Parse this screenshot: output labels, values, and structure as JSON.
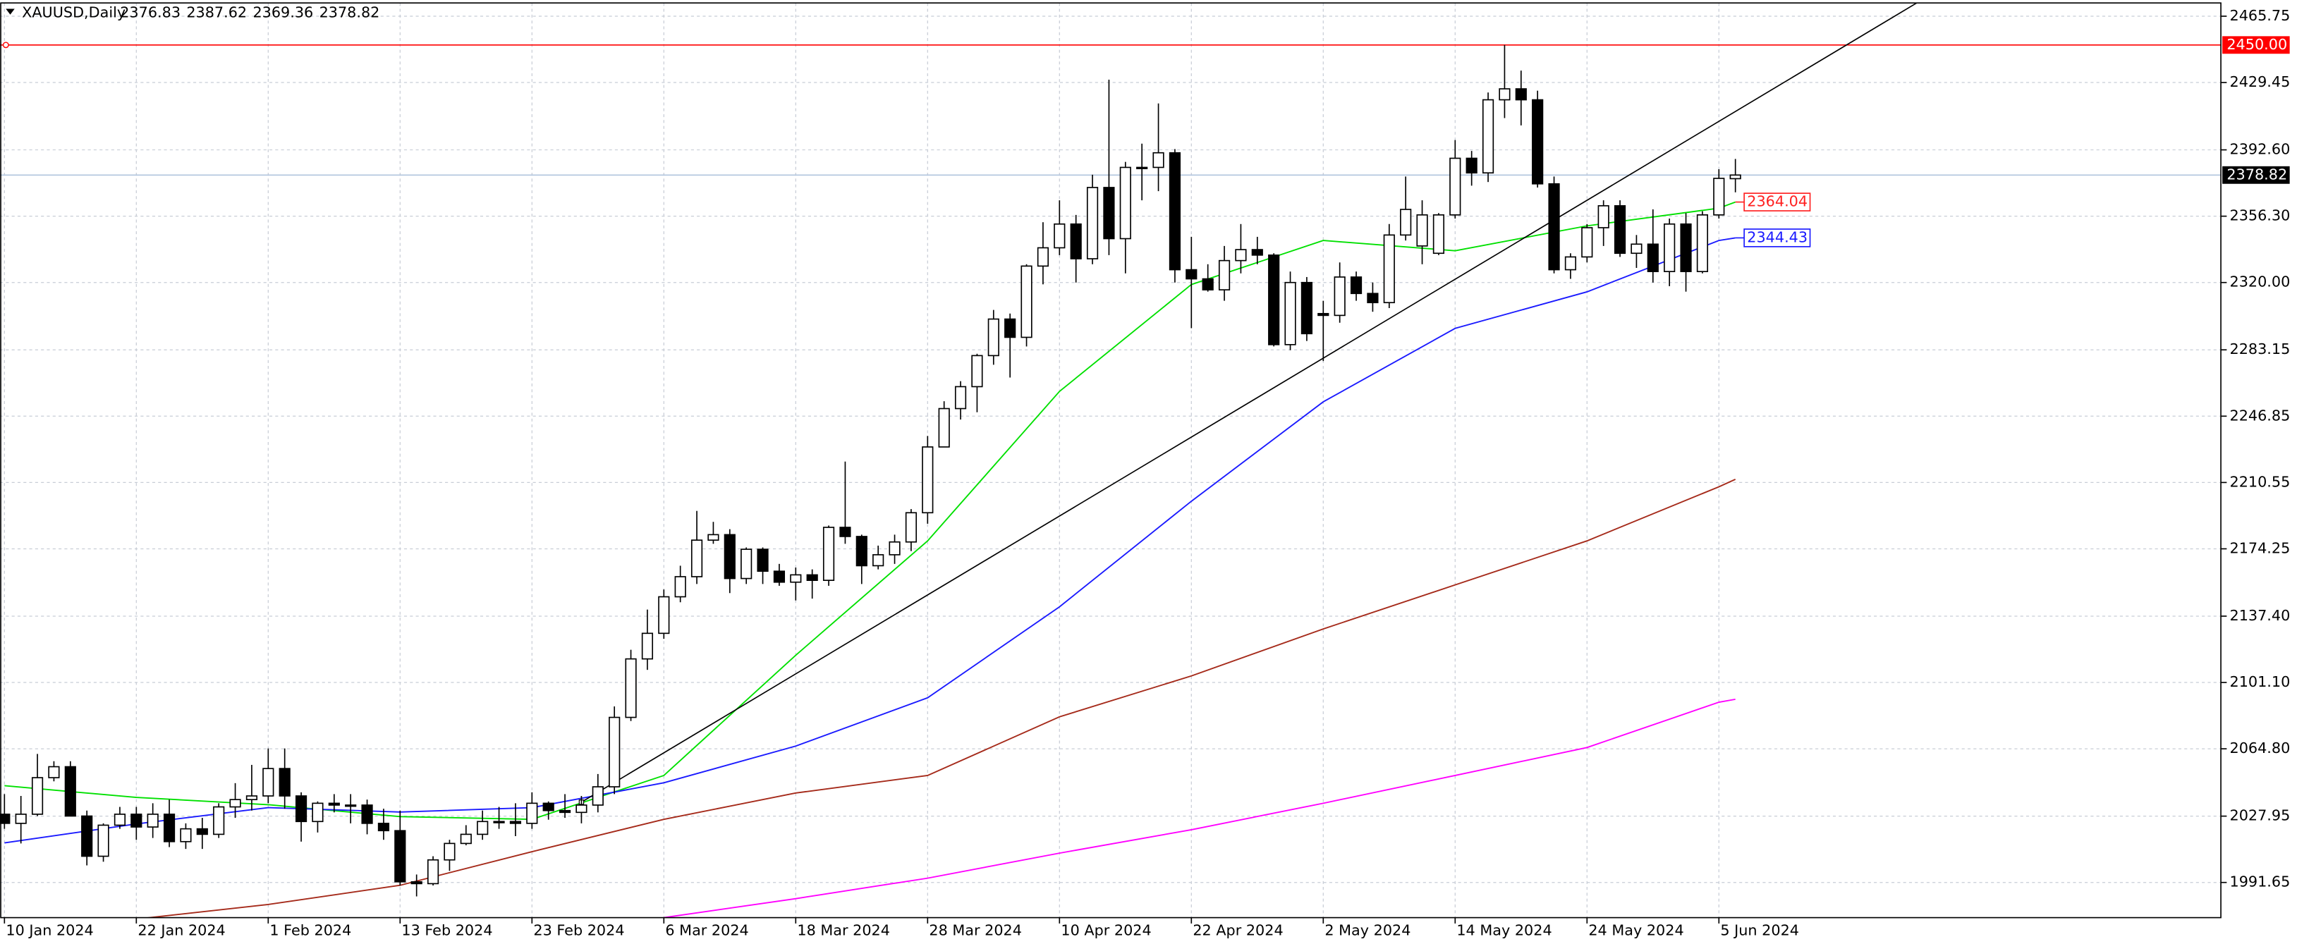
{
  "chart_data": {
    "type": "candlestick",
    "title": "XAUUSD,Daily",
    "categories": [
      "10 Jan 2024",
      null,
      null,
      null,
      null,
      null,
      null,
      null,
      "22 Jan 2024",
      null,
      null,
      null,
      null,
      null,
      null,
      null,
      "1 Feb 2024",
      null,
      null,
      null,
      null,
      null,
      null,
      null,
      "13 Feb 2024",
      null,
      null,
      null,
      null,
      null,
      null,
      null,
      "23 Feb 2024",
      null,
      null,
      null,
      null,
      null,
      null,
      null,
      "6 Mar 2024",
      null,
      null,
      null,
      null,
      null,
      null,
      null,
      "18 Mar 2024",
      null,
      null,
      null,
      null,
      null,
      null,
      null,
      "28 Mar 2024",
      null,
      null,
      null,
      null,
      null,
      null,
      null,
      "10 Apr 2024",
      null,
      null,
      null,
      null,
      null,
      null,
      null,
      "22 Apr 2024",
      null,
      null,
      null,
      null,
      null,
      null,
      null,
      "2 May 2024",
      null,
      null,
      null,
      null,
      null,
      null,
      null,
      "14 May 2024",
      null,
      null,
      null,
      null,
      null,
      null,
      null,
      "24 May 2024",
      null,
      null,
      null,
      null,
      null,
      null,
      null,
      "5 Jun 2024",
      null
    ],
    "open": [
      2029,
      2024,
      2029,
      2049,
      2055,
      2028,
      2006,
      2023,
      2029,
      2022,
      2029,
      2014,
      2021,
      2018,
      2033,
      2037,
      2039,
      2054,
      2039,
      2025,
      2035,
      2034,
      2034,
      2024,
      2020,
      1992,
      1991,
      2004,
      2013,
      2018,
      2025,
      2025,
      2024,
      2035,
      2031,
      2030,
      2034,
      2044,
      2082,
      2114,
      2128,
      2148,
      2159,
      2179,
      2182,
      2158,
      2174,
      2162,
      2156,
      2160,
      2157,
      2186,
      2181,
      2165,
      2171,
      2178,
      2194,
      2230,
      2251,
      2263,
      2280,
      2300,
      2290,
      2329,
      2339,
      2352,
      2333,
      2372,
      2344,
      2383,
      2383,
      2391,
      2327,
      2322,
      2316,
      2332,
      2338,
      2335,
      2286,
      2320,
      2303,
      2302,
      2323,
      2314,
      2309,
      2346,
      2340,
      2336,
      2357,
      2388,
      2380,
      2420,
      2426,
      2420,
      2374,
      2327,
      2334,
      2350,
      2362,
      2336,
      2341,
      2326,
      2352,
      2326,
      2357,
      2376.83
    ],
    "high": [
      2040,
      2039,
      2062,
      2058,
      2058,
      2031,
      2024,
      2033,
      2033,
      2035,
      2037,
      2024,
      2027,
      2035,
      2046,
      2056,
      2065,
      2065,
      2041,
      2036,
      2040,
      2040,
      2037,
      2032,
      2031,
      1996,
      2006,
      2015,
      2023,
      2031,
      2033,
      2035,
      2041,
      2036,
      2040,
      2039,
      2051,
      2088,
      2119,
      2141,
      2152,
      2165,
      2195,
      2189,
      2185,
      2175,
      2175,
      2166,
      2164,
      2163,
      2187,
      2222,
      2182,
      2176,
      2182,
      2196,
      2236,
      2255,
      2266,
      2281,
      2305,
      2303,
      2330,
      2353,
      2365,
      2357,
      2379,
      2431,
      2386,
      2396,
      2418,
      2393,
      2345,
      2330,
      2340,
      2352,
      2345,
      2336,
      2326,
      2323,
      2310,
      2331,
      2326,
      2320,
      2352,
      2378,
      2365,
      2358,
      2398,
      2392,
      2424,
      2450,
      2436,
      2425,
      2378,
      2336,
      2352,
      2365,
      2365,
      2346,
      2360,
      2355,
      2358,
      2359,
      2382,
      2387.62
    ],
    "low": [
      2021,
      2013,
      2028,
      2047,
      2029,
      2001,
      2003,
      2021,
      2015,
      2016,
      2011,
      2010,
      2010,
      2016,
      2027,
      2031,
      2035,
      2032,
      2014,
      2019,
      2030,
      2024,
      2018,
      2015,
      1990,
      1984,
      1990,
      1998,
      2012,
      2015,
      2021,
      2017,
      2021,
      2026,
      2027,
      2024,
      2030,
      2040,
      2080,
      2108,
      2125,
      2145,
      2155,
      2177,
      2150,
      2155,
      2155,
      2154,
      2146,
      2147,
      2154,
      2177,
      2155,
      2163,
      2166,
      2173,
      2188,
      2230,
      2245,
      2249,
      2275,
      2268,
      2285,
      2319,
      2335,
      2320,
      2330,
      2335,
      2325,
      2365,
      2370,
      2320,
      2295,
      2315,
      2310,
      2325,
      2330,
      2285,
      2283,
      2288,
      2277,
      2298,
      2310,
      2304,
      2306,
      2343,
      2330,
      2335,
      2355,
      2373,
      2375,
      2410,
      2406,
      2372,
      2325,
      2322,
      2331,
      2340,
      2334,
      2328,
      2320,
      2318,
      2315,
      2325,
      2355,
      2369.36
    ],
    "close": [
      2024,
      2029,
      2049,
      2055,
      2028,
      2006,
      2023,
      2029,
      2022,
      2029,
      2014,
      2021,
      2018,
      2033,
      2037,
      2039,
      2054,
      2039,
      2025,
      2035,
      2034,
      2034,
      2024,
      2020,
      1992,
      1991,
      2004,
      2013,
      2018,
      2025,
      2025,
      2024,
      2035,
      2031,
      2030,
      2034,
      2044,
      2082,
      2114,
      2128,
      2148,
      2159,
      2179,
      2182,
      2158,
      2174,
      2162,
      2156,
      2160,
      2157,
      2186,
      2181,
      2165,
      2171,
      2178,
      2194,
      2230,
      2251,
      2263,
      2280,
      2300,
      2290,
      2329,
      2339,
      2352,
      2333,
      2372,
      2344,
      2383,
      2383,
      2391,
      2327,
      2322,
      2316,
      2332,
      2338,
      2335,
      2286,
      2320,
      2292,
      2302,
      2323,
      2314,
      2309,
      2346,
      2360,
      2357,
      2357,
      2388,
      2380,
      2420,
      2426,
      2420,
      2374,
      2327,
      2334,
      2350,
      2362,
      2336,
      2341,
      2326,
      2352,
      2326,
      2357,
      2377,
      2378.82
    ],
    "lines": [
      {
        "color": "#00e000",
        "label_color": "#ff2020",
        "x": [
          0,
          8,
          16,
          24,
          32,
          40,
          48,
          56,
          64,
          72,
          80,
          88,
          96,
          104,
          105
        ],
        "values": [
          2044.6,
          2038.2,
          2034.2,
          2027.7,
          2026.2,
          2050.2,
          2116.0,
          2178.6,
          2260.4,
          2318.9,
          2343.0,
          2337.4,
          2351.0,
          2360.7,
          2364.04
        ]
      },
      {
        "color": "#1a1aff",
        "label_color": "#1a1aff",
        "x": [
          0,
          8,
          16,
          24,
          32,
          40,
          48,
          56,
          64,
          72,
          80,
          88,
          96,
          104,
          105
        ],
        "values": [
          2013.3,
          2023.7,
          2032.6,
          2030.2,
          2032.6,
          2046.2,
          2066.3,
          2092.7,
          2142.5,
          2200.3,
          2254.7,
          2294.9,
          2314.9,
          2343.0,
          2344.43
        ]
      },
      {
        "color": "#a52a1a",
        "x": [
          8,
          16,
          24,
          32,
          40,
          48,
          56,
          64,
          72,
          80,
          88,
          96,
          104,
          105
        ],
        "values": [
          1971.6,
          1979.6,
          1990.1,
          2008.5,
          2026.2,
          2040.6,
          2050.2,
          2082.3,
          2104.7,
          2130.4,
          2154.5,
          2178.6,
          2208.2,
          2212.3
        ]
      },
      {
        "color": "#ff00ff",
        "x": [
          40,
          48,
          56,
          64,
          72,
          80,
          88,
          96,
          104,
          105
        ],
        "values": [
          1972.4,
          1982.8,
          1994.0,
          2007.7,
          2020.5,
          2035.0,
          2050.2,
          2065.5,
          2090.3,
          2091.9
        ]
      }
    ],
    "trendline": {
      "color": "#000000",
      "x": [
        35,
        116
      ],
      "values": [
        2035.6,
        2473.0
      ]
    },
    "price_line": {
      "value": 2450,
      "label": "2450.00",
      "color": "#ff0000"
    },
    "bid_line_color": "#b0c4de",
    "xlim": [
      -0.27,
      134.45
    ],
    "ylim": [
      1972.4,
      2473.0
    ],
    "yticks": [
      {
        "value": 1991.65,
        "label": "1991.65"
      },
      {
        "value": 2027.95,
        "label": "2027.95"
      },
      {
        "value": 2064.8,
        "label": "2064.80"
      },
      {
        "value": 2101.1,
        "label": "2101.10"
      },
      {
        "value": 2137.4,
        "label": "2137.40"
      },
      {
        "value": 2174.25,
        "label": "2174.25"
      },
      {
        "value": 2210.55,
        "label": "2210.55"
      },
      {
        "value": 2246.85,
        "label": "2246.85"
      },
      {
        "value": 2283.15,
        "label": "2283.15"
      },
      {
        "value": 2320,
        "label": "2320.00"
      },
      {
        "value": 2356.3,
        "label": "2356.30"
      },
      {
        "value": 2392.6,
        "label": "2392.60"
      },
      {
        "value": 2429.45,
        "label": "2429.45"
      },
      2465.75
    ],
    "grid": true
  }
}
